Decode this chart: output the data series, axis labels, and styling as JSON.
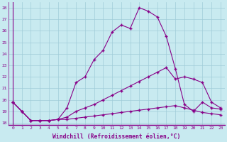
{
  "xlabel": "Windchill (Refroidissement éolien,°C)",
  "xlim": [
    -0.5,
    23.5
  ],
  "ylim": [
    17.8,
    28.5
  ],
  "xticks": [
    0,
    1,
    2,
    3,
    4,
    5,
    6,
    7,
    8,
    9,
    10,
    11,
    12,
    13,
    14,
    15,
    16,
    17,
    18,
    19,
    20,
    21,
    22,
    23
  ],
  "yticks": [
    18,
    19,
    20,
    21,
    22,
    23,
    24,
    25,
    26,
    27,
    28
  ],
  "background_color": "#c8eaf0",
  "grid_color": "#a0ccd8",
  "line_color": "#880088",
  "line1_x": [
    0,
    1,
    2,
    3,
    4,
    5,
    6,
    7,
    8,
    9,
    10,
    11,
    12,
    13,
    14,
    15,
    16,
    17,
    18,
    19,
    20,
    21,
    22,
    23
  ],
  "line1_y": [
    19.8,
    19.0,
    18.2,
    18.2,
    18.2,
    18.3,
    19.3,
    21.5,
    22.0,
    23.5,
    24.3,
    25.9,
    26.5,
    26.2,
    28.0,
    27.7,
    27.2,
    25.5,
    22.7,
    19.6,
    19.0,
    19.8,
    19.3,
    19.2
  ],
  "line2_x": [
    0,
    1,
    2,
    3,
    4,
    5,
    6,
    7,
    8,
    9,
    10,
    11,
    12,
    13,
    14,
    15,
    16,
    17,
    18,
    19,
    20,
    21,
    22,
    23
  ],
  "line2_y": [
    19.8,
    19.0,
    18.2,
    18.2,
    18.2,
    18.3,
    18.5,
    19.0,
    19.3,
    19.6,
    20.0,
    20.4,
    20.8,
    21.2,
    21.6,
    22.0,
    22.4,
    22.8,
    21.8,
    22.0,
    21.8,
    21.5,
    19.8,
    19.3
  ],
  "line3_x": [
    0,
    1,
    2,
    3,
    4,
    5,
    6,
    7,
    8,
    9,
    10,
    11,
    12,
    13,
    14,
    15,
    16,
    17,
    18,
    19,
    20,
    21,
    22,
    23
  ],
  "line3_y": [
    19.8,
    19.0,
    18.2,
    18.2,
    18.2,
    18.3,
    18.3,
    18.4,
    18.5,
    18.6,
    18.7,
    18.8,
    18.9,
    19.0,
    19.1,
    19.2,
    19.3,
    19.4,
    19.5,
    19.3,
    19.1,
    18.9,
    18.8,
    18.7
  ]
}
